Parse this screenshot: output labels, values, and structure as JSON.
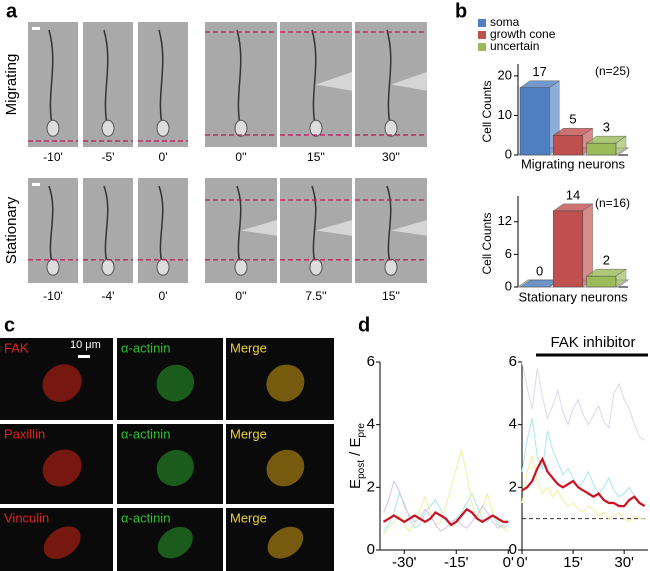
{
  "panels": {
    "a": {
      "label": "a",
      "rows": [
        {
          "label": "Migrating",
          "times": [
            "-10'",
            "-5'",
            "0'",
            "0''",
            "15''",
            "30''"
          ]
        },
        {
          "label": "Stationary",
          "times": [
            "-10'",
            "-4'",
            "0'",
            "0''",
            "7.5''",
            "15''"
          ]
        }
      ]
    },
    "b": {
      "label": "b"
    },
    "c": {
      "label": "c",
      "scale_bar": "10 μm",
      "rows": [
        [
          "FAK",
          "α-actinin",
          "Merge"
        ],
        [
          "Paxillin",
          "α-actinin",
          "Merge"
        ],
        [
          "Vinculin",
          "α-actinin",
          "Merge"
        ]
      ]
    },
    "d": {
      "label": "d"
    }
  },
  "chart_data": [
    {
      "type": "bar3d",
      "categories": [
        "soma",
        "growth cone",
        "uncertain"
      ],
      "values": [
        17,
        5,
        3
      ],
      "colors": [
        "#4f7fc0",
        "#c0504d",
        "#9bbb59"
      ],
      "ylim": [
        0,
        22
      ],
      "yticks": [
        0,
        10,
        20
      ],
      "ylabel": "Cell Counts",
      "xlabel": "Migrating neurons",
      "annotation": "(n=25)",
      "legend": true
    },
    {
      "type": "bar3d",
      "categories": [
        null,
        null,
        null
      ],
      "values": [
        0,
        14,
        2
      ],
      "colors": [
        "#4f7fc0",
        "#c0504d",
        "#9bbb59"
      ],
      "ylim": [
        0,
        16
      ],
      "yticks": [
        0,
        6,
        12
      ],
      "ylabel": "Cell Counts",
      "xlabel": "Stationary neurons",
      "annotation": "(n=16)",
      "legend": false
    },
    {
      "type": "line",
      "ylabel": [
        "E",
        "post",
        " / E",
        "pre"
      ],
      "x": [
        -36,
        -34.5,
        -33,
        -31.5,
        -30,
        -28.5,
        -27,
        -25.5,
        -24,
        -22.5,
        -21,
        -19.5,
        -18,
        -16.5,
        -15,
        -13.5,
        -12,
        -10.5,
        -9,
        -7.5,
        -6,
        -4.5,
        -3,
        -1.5,
        0
      ],
      "xlim": [
        -37,
        0.5
      ],
      "xticks": [
        {
          "value": -30,
          "label": "-30'"
        },
        {
          "value": -15,
          "label": "-15'"
        },
        {
          "value": 0,
          "label": "0'"
        }
      ],
      "ylim": [
        0,
        6
      ],
      "yticks": [
        0,
        2,
        4,
        6
      ],
      "series": [
        {
          "color": "#a8e8ec",
          "values": [
            0.6,
            0.8,
            1.2,
            1.8,
            1.5,
            1.0,
            0.7,
            0.8,
            1.2,
            1.4,
            1.6,
            1.3,
            0.9,
            0.8,
            1.0,
            1.2,
            1.5,
            1.8,
            1.4,
            1.0,
            0.9,
            1.1,
            0.8,
            0.7,
            0.8
          ]
        },
        {
          "color": "#efef9c",
          "values": [
            0.5,
            0.7,
            0.9,
            1.1,
            0.8,
            0.6,
            0.9,
            1.3,
            1.7,
            1.2,
            0.8,
            0.9,
            1.4,
            2.0,
            2.6,
            3.2,
            2.4,
            1.5,
            1.0,
            1.3,
            1.8,
            1.2,
            0.9,
            0.7,
            0.6
          ]
        },
        {
          "color": "#d4c4e6",
          "values": [
            1.2,
            1.6,
            2.2,
            1.9,
            1.4,
            1.1,
            0.9,
            1.0,
            1.3,
            1.1,
            0.8,
            0.6,
            0.7,
            0.9,
            1.0,
            0.8,
            0.7,
            0.9,
            1.1,
            1.4,
            1.2,
            0.9,
            0.7,
            0.8,
            0.9
          ]
        },
        {
          "color": "#cc1122",
          "values": [
            0.9,
            1.0,
            1.1,
            1.0,
            0.9,
            1.0,
            1.1,
            1.0,
            0.9,
            1.0,
            1.2,
            1.1,
            1.0,
            0.8,
            0.9,
            1.1,
            1.3,
            1.2,
            1.0,
            0.9,
            1.0,
            1.1,
            1.0,
            0.9,
            0.9
          ]
        }
      ]
    },
    {
      "type": "line",
      "title": "FAK inhibitor",
      "reference_line": 1,
      "x": [
        0,
        1.5,
        3,
        4.5,
        6,
        7.5,
        9,
        10.5,
        12,
        13.5,
        15,
        16.5,
        18,
        19.5,
        21,
        22.5,
        24,
        25.5,
        27,
        28.5,
        30,
        31.5,
        33,
        34.5,
        36
      ],
      "xlim": [
        0,
        37
      ],
      "xticks": [
        {
          "value": 0,
          "label": "0'"
        },
        {
          "value": 15,
          "label": "15'"
        },
        {
          "value": 30,
          "label": "30'"
        }
      ],
      "ylim": [
        0,
        6
      ],
      "yticks": [
        0,
        2,
        4,
        6
      ],
      "series": [
        {
          "color": "#e2d6ee",
          "values": [
            6.0,
            5.2,
            4.5,
            5.8,
            4.9,
            4.2,
            4.6,
            5.1,
            4.4,
            4.0,
            4.5,
            4.8,
            4.3,
            4.0,
            4.3,
            4.6,
            4.1,
            3.9,
            5.0,
            5.3,
            4.8,
            4.5,
            4.0,
            3.6,
            3.5
          ]
        },
        {
          "color": "#a8e8ec",
          "values": [
            2.5,
            3.5,
            4.2,
            3.0,
            2.6,
            3.8,
            3.2,
            2.8,
            2.4,
            2.6,
            2.3,
            2.0,
            2.2,
            2.5,
            2.1,
            1.8,
            2.0,
            2.3,
            1.9,
            1.7,
            1.8,
            2.0,
            1.7,
            1.5,
            1.4
          ]
        },
        {
          "color": "#efef9c",
          "values": [
            1.5,
            2.5,
            3.0,
            2.2,
            1.8,
            2.0,
            1.7,
            1.9,
            1.6,
            1.4,
            1.5,
            1.3,
            1.2,
            1.4,
            1.3,
            1.1,
            1.2,
            1.0,
            1.1,
            1.2,
            1.0,
            0.9,
            1.1,
            1.0,
            1.0
          ]
        },
        {
          "color": "#cc1122",
          "values": [
            1.9,
            2.0,
            2.2,
            2.6,
            2.9,
            2.5,
            2.3,
            2.1,
            2.0,
            2.1,
            2.2,
            2.0,
            1.9,
            1.8,
            1.7,
            1.8,
            1.6,
            1.5,
            1.5,
            1.4,
            1.4,
            1.6,
            1.7,
            1.5,
            1.4
          ]
        }
      ]
    }
  ]
}
